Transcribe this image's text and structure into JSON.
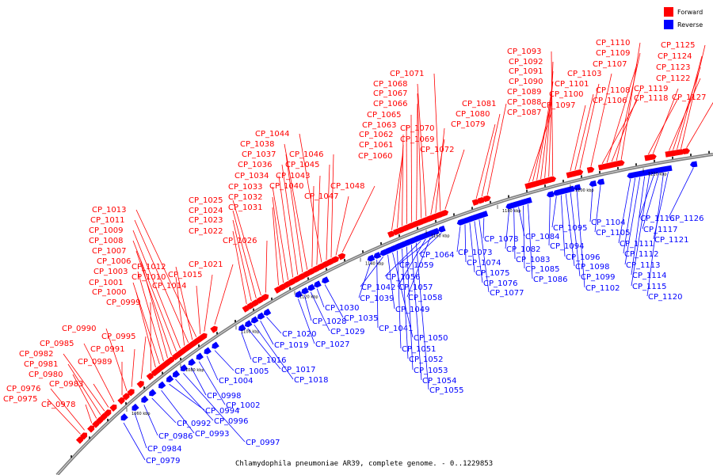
{
  "caption": "Chlamydophila pneumoniae AR39, complete genome. - 0..1229853",
  "legend": {
    "forward": "Forward",
    "reverse": "Reverse",
    "forward_color": "#ff0000",
    "reverse_color": "#0000ff"
  },
  "ticks": [
    "1060 kbp",
    "1080 kbp",
    "1100 kbp",
    "1120 kbp",
    "1140 kbp",
    "1160 kbp",
    "1180 kbp",
    "1200 kbp",
    "1220 kbp"
  ],
  "forward_genes": [
    "CP_0975",
    "CP_0976",
    "CP_0978",
    "CP_0980",
    "CP_0981",
    "CP_0982",
    "CP_0983",
    "CP_0985",
    "CP_0989",
    "CP_0990",
    "CP_0991",
    "CP_0995",
    "CP_0999",
    "CP_1000",
    "CP_1001",
    "CP_1003",
    "CP_1006",
    "CP_1007",
    "CP_1008",
    "CP_1009",
    "CP_1010",
    "CP_1011",
    "CP_1012",
    "CP_1013",
    "CP_1014",
    "CP_1015",
    "CP_1021",
    "CP_1022",
    "CP_1023",
    "CP_1024",
    "CP_1025",
    "CP_1026",
    "CP_1031",
    "CP_1032",
    "CP_1033",
    "CP_1034",
    "CP_1036",
    "CP_1037",
    "CP_1038",
    "CP_1040",
    "CP_1043",
    "CP_1044",
    "CP_1045",
    "CP_1046",
    "CP_1047",
    "CP_1048",
    "CP_1060",
    "CP_1061",
    "CP_1062",
    "CP_1063",
    "CP_1065",
    "CP_1066",
    "CP_1067",
    "CP_1068",
    "CP_1069",
    "CP_1070",
    "CP_1071",
    "CP_1072",
    "CP_1079",
    "CP_1080",
    "CP_1081",
    "CP_1087",
    "CP_1088",
    "CP_1089",
    "CP_1090",
    "CP_1091",
    "CP_1092",
    "CP_1093",
    "CP_1097",
    "CP_1100",
    "CP_1101",
    "CP_1103",
    "CP_1106",
    "CP_1107",
    "CP_1108",
    "CP_1109",
    "CP_1110",
    "CP_1118",
    "CP_1119",
    "CP_1122",
    "CP_1123",
    "CP_1124",
    "CP_1125",
    "CP_1127"
  ],
  "reverse_genes": [
    "CP_0979",
    "CP_0984",
    "CP_0986",
    "CP_0992",
    "CP_0993",
    "CP_0994",
    "CP_0996",
    "CP_0997",
    "CP_0998",
    "CP_1002",
    "CP_1004",
    "CP_1005",
    "CP_1016",
    "CP_1017",
    "CP_1018",
    "CP_1019",
    "CP_1020",
    "CP_1027",
    "CP_1028",
    "CP_1029",
    "CP_1030",
    "CP_1035",
    "CP_1039",
    "CP_1041",
    "CP_1042",
    "CP_1049",
    "CP_1050",
    "CP_1051",
    "CP_1052",
    "CP_1053",
    "CP_1054",
    "CP_1055",
    "CP_1056",
    "CP_1057",
    "CP_1058",
    "CP_1059",
    "CP_1064",
    "CP_1073",
    "CP_1074",
    "CP_1075",
    "CP_1076",
    "CP_1077",
    "CP_1078",
    "CP_1082",
    "CP_1083",
    "CP_1084",
    "CP_1085",
    "CP_1086",
    "CP_1094",
    "CP_1095",
    "CP_1096",
    "CP_1098",
    "CP_1099",
    "CP_1102",
    "CP_1104",
    "CP_1105",
    "CP_1111",
    "CP_1112",
    "CP_1113",
    "CP_1114",
    "CP_1115",
    "CP_1116",
    "CP_1117",
    "CP_1120",
    "CP_1121",
    "CP_1126"
  ]
}
